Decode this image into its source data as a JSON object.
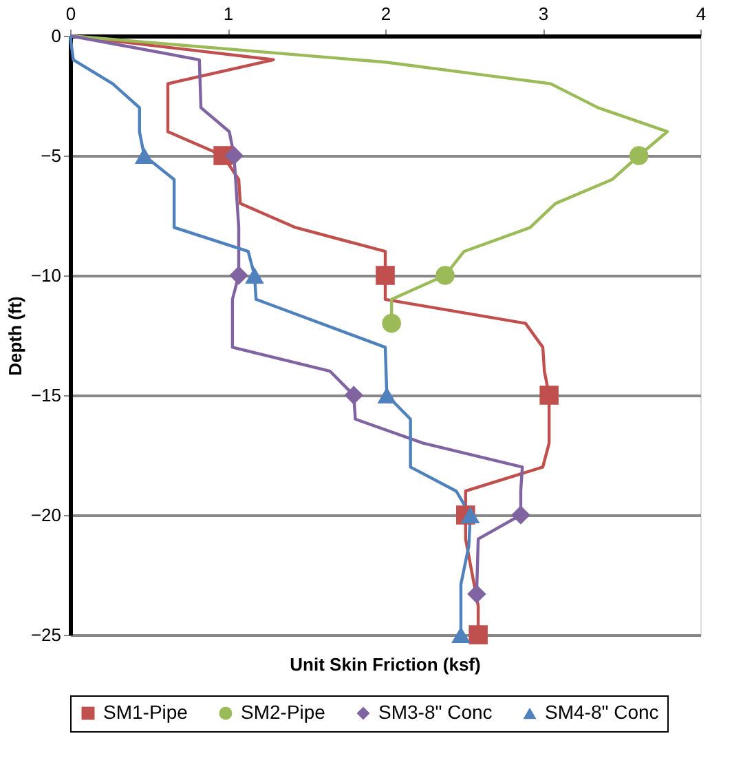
{
  "chart_data": {
    "type": "line",
    "xlabel": "Unit Skin Friction (ksf)",
    "ylabel": "Depth (ft)",
    "xlim": [
      0,
      4
    ],
    "xticks": [
      0,
      1,
      2,
      3,
      4
    ],
    "ylim": [
      -25,
      0
    ],
    "yticks": [
      -25,
      -20,
      -15,
      -10,
      -5,
      0
    ],
    "grid": "y",
    "legend": "bottom",
    "series": [
      {
        "color": "#c0504d",
        "marker": "none",
        "x": [
          0,
          1.29,
          0.62,
          0.62,
          0.97,
          1.07,
          1.08,
          1.43,
          2.0,
          2.0,
          2.0,
          2.89,
          3.0,
          3.01,
          3.04,
          3.04,
          3.0,
          2.51,
          2.51,
          2.51,
          2.59,
          2.59
        ],
        "values": [
          0,
          -1,
          -2,
          -4,
          -5,
          -6,
          -7,
          -8,
          -9,
          -10,
          -11,
          -12,
          -13,
          -14,
          -15,
          -17,
          -18,
          -19,
          -20,
          -21,
          -23.8,
          -25
        ]
      },
      {
        "color": "#9bbb59",
        "marker": "none",
        "x": [
          0,
          2.0,
          3.05,
          3.35,
          3.79,
          3.61,
          3.44,
          3.08,
          2.92,
          2.5,
          2.38,
          2.04,
          2.04
        ],
        "values": [
          0,
          -1.1,
          -2,
          -3,
          -4,
          -5,
          -6,
          -7,
          -8,
          -9,
          -10,
          -11,
          -12
        ]
      },
      {
        "color": "#8064a2",
        "marker": "none",
        "x": [
          0,
          0.82,
          0.83,
          1.01,
          1.04,
          1.07,
          1.07,
          1.07,
          1.03,
          1.03,
          1.65,
          1.8,
          1.81,
          2.24,
          2.87,
          2.86,
          2.86,
          2.59,
          2.58
        ],
        "values": [
          0,
          -1,
          -3,
          -4,
          -5,
          -8,
          -9,
          -10,
          -11,
          -13,
          -14,
          -15,
          -16,
          -17,
          -18,
          -19,
          -20,
          -21,
          -23.3
        ]
      },
      {
        "color": "#4f81bd",
        "marker": "none",
        "x": [
          0,
          0.02,
          0.27,
          0.44,
          0.44,
          0.47,
          0.66,
          0.66,
          1.13,
          1.17,
          1.18,
          2.0,
          2.01,
          2.16,
          2.16,
          2.45,
          2.54,
          2.53,
          2.48,
          2.48
        ],
        "values": [
          0,
          -1,
          -2,
          -3,
          -4,
          -5,
          -6,
          -8,
          -9,
          -10,
          -11,
          -13,
          -15,
          -16,
          -18,
          -19,
          -20,
          -21.3,
          -22.9,
          -25
        ]
      },
      {
        "type": "scatter",
        "name": "SM1-Pipe",
        "color": "#c0504d",
        "marker": "square",
        "x": [
          0.97,
          2.0,
          3.04,
          2.51,
          2.59
        ],
        "values": [
          -5,
          -10,
          -15,
          -20,
          -25
        ]
      },
      {
        "type": "scatter",
        "name": "SM2-Pipe",
        "color": "#9bbb59",
        "marker": "circle",
        "x": [
          3.61,
          2.38,
          2.04
        ],
        "values": [
          -5,
          -10,
          -12
        ]
      },
      {
        "type": "scatter",
        "name": "SM3-8\" Conc",
        "color": "#8064a2",
        "marker": "diamond",
        "x": [
          1.04,
          1.07,
          1.8,
          2.86,
          2.58
        ],
        "values": [
          -5,
          -10,
          -15,
          -20,
          -23.3
        ]
      },
      {
        "type": "scatter",
        "name": "SM4-8\" Conc",
        "color": "#4f81bd",
        "marker": "triangle",
        "x": [
          0.47,
          1.17,
          2.01,
          2.54,
          2.48
        ],
        "values": [
          -5,
          -10,
          -15,
          -20,
          -25
        ]
      }
    ]
  }
}
